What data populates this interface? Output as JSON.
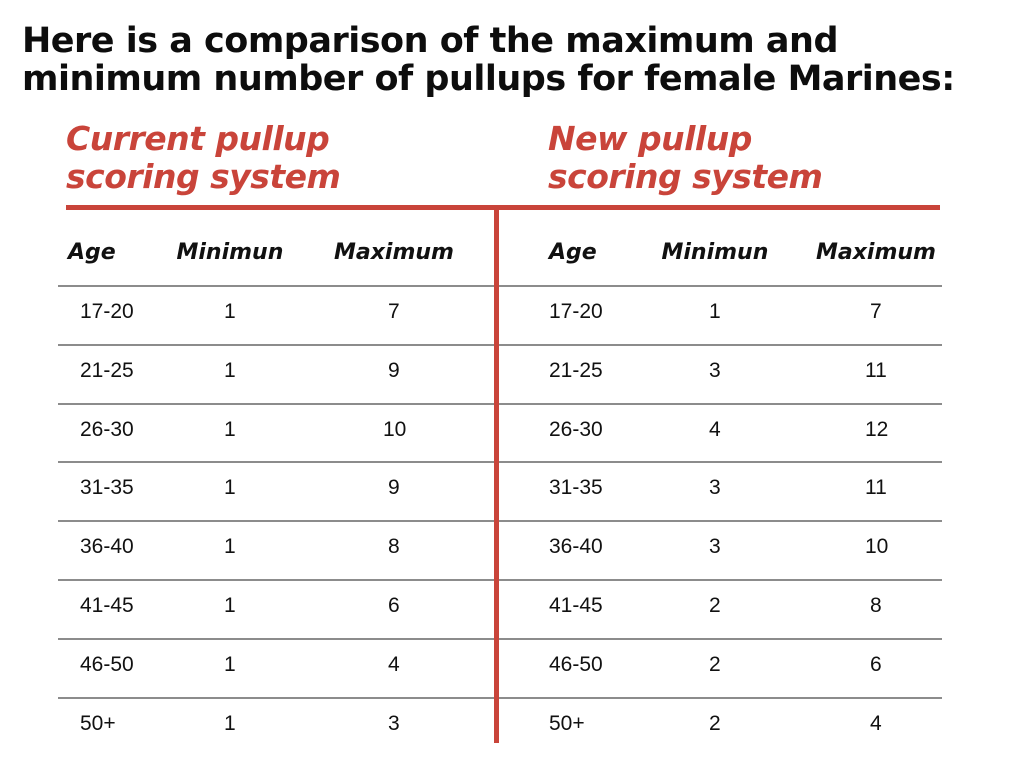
{
  "title": {
    "line1": "Here is a comparison of the maximum and",
    "line2": "minimum number of pullups for female Marines:"
  },
  "colors": {
    "accent": "#c9443a",
    "text": "#111111",
    "row_rule": "#8c8c8c"
  },
  "chart_data": {
    "type": "table",
    "title": "Here is a comparison of the maximum and minimum number of pullups for female Marines:",
    "tables": [
      {
        "heading_line1": "Current pullup",
        "heading_line2": "scoring system",
        "columns": [
          "Age",
          "Minimun",
          "Maximum"
        ],
        "rows": [
          [
            "17-20",
            "1",
            "7"
          ],
          [
            "21-25",
            "1",
            "9"
          ],
          [
            "26-30",
            "1",
            "10"
          ],
          [
            "31-35",
            "1",
            "9"
          ],
          [
            "36-40",
            "1",
            "8"
          ],
          [
            "41-45",
            "1",
            "6"
          ],
          [
            "46-50",
            "1",
            "4"
          ],
          [
            "50+",
            "1",
            "3"
          ]
        ]
      },
      {
        "heading_line1": "New pullup",
        "heading_line2": "scoring system",
        "columns": [
          "Age",
          "Minimun",
          "Maximum"
        ],
        "rows": [
          [
            "17-20",
            "1",
            "7"
          ],
          [
            "21-25",
            "3",
            "11"
          ],
          [
            "26-30",
            "4",
            "12"
          ],
          [
            "31-35",
            "3",
            "11"
          ],
          [
            "36-40",
            "3",
            "10"
          ],
          [
            "41-45",
            "2",
            "8"
          ],
          [
            "46-50",
            "2",
            "6"
          ],
          [
            "50+",
            "2",
            "4"
          ]
        ]
      }
    ]
  }
}
